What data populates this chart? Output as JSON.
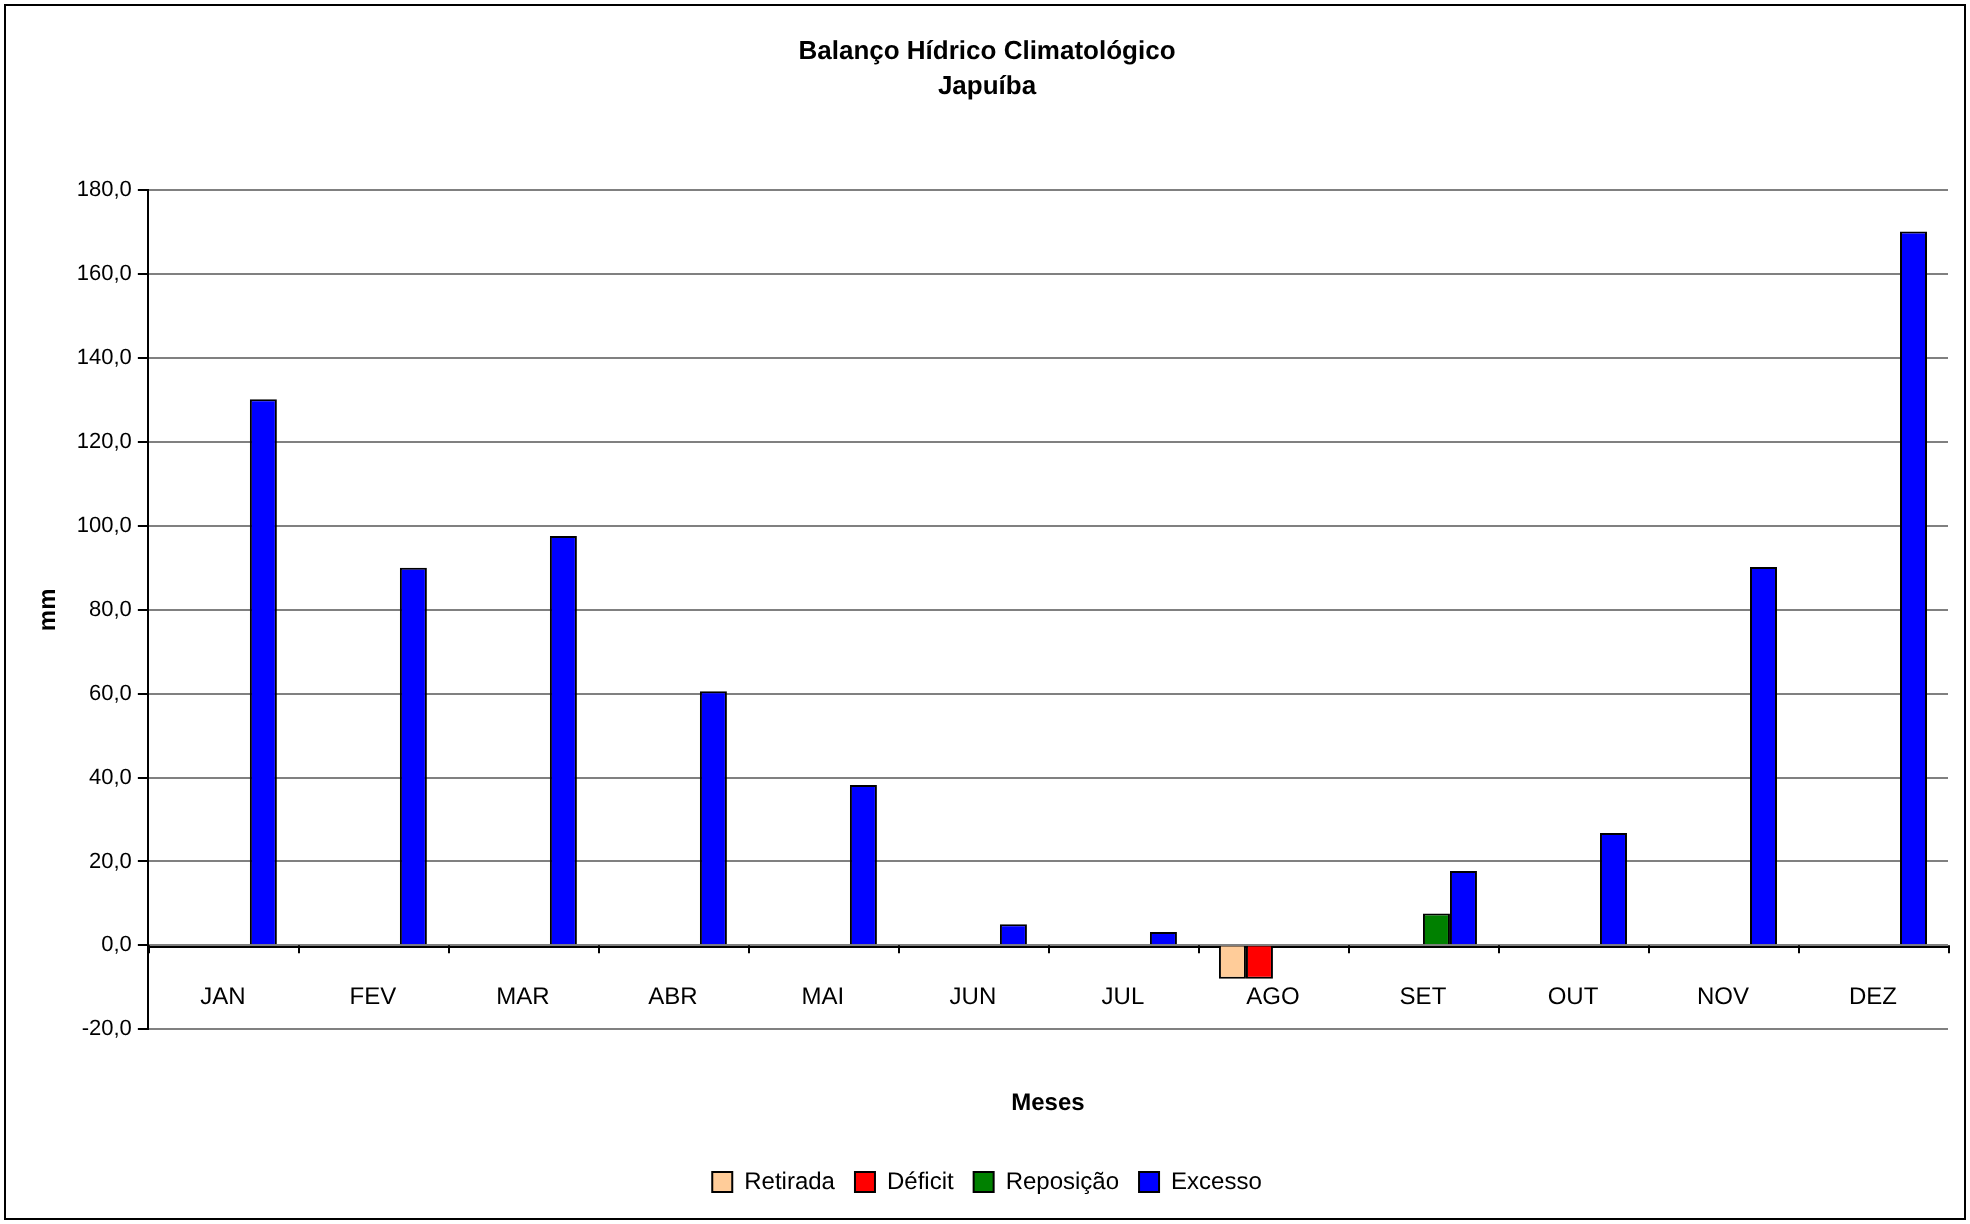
{
  "chart_data": {
    "type": "bar",
    "title": "Balanço Hídrico Climatológico",
    "subtitle": "Japuíba",
    "xlabel": "Meses",
    "ylabel": "mm",
    "categories": [
      "JAN",
      "FEV",
      "MAR",
      "ABR",
      "MAI",
      "JUN",
      "JUL",
      "AGO",
      "SET",
      "OUT",
      "NOV",
      "DEZ"
    ],
    "series": [
      {
        "name": "Retirada",
        "color": "#ffcc99",
        "values": [
          null,
          null,
          null,
          null,
          null,
          null,
          null,
          -8.0,
          null,
          null,
          null,
          null
        ]
      },
      {
        "name": "Déficit",
        "color": "#ff0000",
        "values": [
          null,
          null,
          null,
          null,
          null,
          null,
          null,
          -8.0,
          null,
          null,
          null,
          null
        ]
      },
      {
        "name": "Reposição",
        "color": "#008000",
        "values": [
          null,
          null,
          null,
          null,
          null,
          null,
          null,
          null,
          7.6,
          null,
          null,
          null
        ]
      },
      {
        "name": "Excesso",
        "color": "#0000ff",
        "values": [
          130.2,
          90.0,
          97.6,
          60.6,
          38.2,
          5.0,
          3.2,
          null,
          17.7,
          26.8,
          90.2,
          170.2
        ]
      }
    ],
    "ylim": [
      -20,
      180
    ],
    "yticks": [
      {
        "value": -20,
        "label": "-20,0"
      },
      {
        "value": 0,
        "label": "0,0"
      },
      {
        "value": 20,
        "label": "20,0"
      },
      {
        "value": 40,
        "label": "40,0"
      },
      {
        "value": 60,
        "label": "60,0"
      },
      {
        "value": 80,
        "label": "80,0"
      },
      {
        "value": 100,
        "label": "100,0"
      },
      {
        "value": 120,
        "label": "120,0"
      },
      {
        "value": 140,
        "label": "140,0"
      },
      {
        "value": 160,
        "label": "160,0"
      },
      {
        "value": 180,
        "label": "180,0"
      }
    ],
    "grid": "y",
    "legend": "bottom"
  }
}
